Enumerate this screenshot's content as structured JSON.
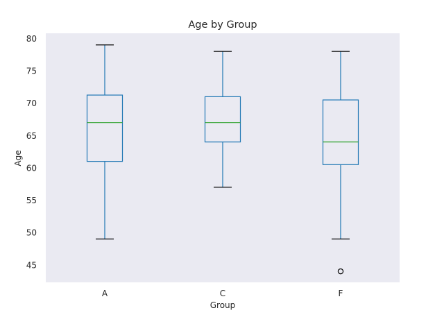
{
  "chart_data": {
    "type": "box",
    "title": "Age by Group",
    "xlabel": "Group",
    "ylabel": "Age",
    "ylim": [
      42.3,
      80.8
    ],
    "yticks": [
      45,
      50,
      55,
      60,
      65,
      70,
      75,
      80
    ],
    "grid": false,
    "categories": [
      "A",
      "C",
      "F"
    ],
    "boxes": [
      {
        "category": "A",
        "whisker_low": 49,
        "q1": 61,
        "median": 67,
        "q3": 71.25,
        "whisker_high": 79,
        "outliers": []
      },
      {
        "category": "C",
        "whisker_low": 57,
        "q1": 64,
        "median": 67,
        "q3": 71,
        "whisker_high": 78,
        "outliers": []
      },
      {
        "category": "F",
        "whisker_low": 49,
        "q1": 60.5,
        "median": 64,
        "q3": 70.5,
        "whisker_high": 78,
        "outliers": [
          44
        ]
      }
    ],
    "colors": {
      "plot_background": "#EAEAF2",
      "box": "#1f77b4",
      "median": "#2ca02c",
      "cap": "#000000",
      "outlier": "#000000"
    }
  }
}
